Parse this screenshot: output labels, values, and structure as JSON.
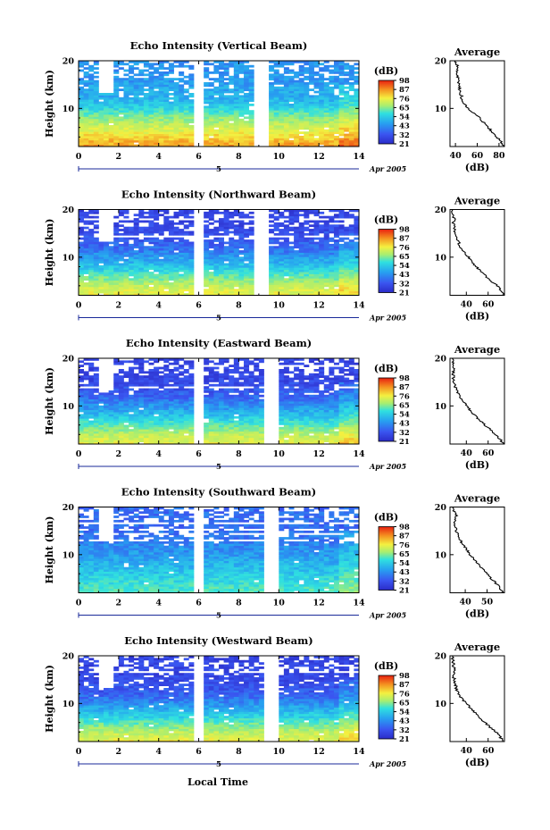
{
  "figure": {
    "xlabel": "Local Time",
    "date_label": "Apr 2005",
    "date_day": "5"
  },
  "chart_data": [
    {
      "type": "heatmap",
      "title": "Echo Intensity (Vertical Beam)",
      "ylabel": "Height (km)",
      "xlim": [
        0,
        14
      ],
      "xticks": [
        0,
        2,
        4,
        6,
        8,
        10,
        12,
        14
      ],
      "ylim": [
        2,
        20
      ],
      "yticks": [
        10,
        20
      ],
      "colorbar": {
        "label": "(dB)",
        "ticks": [
          21,
          32,
          43,
          54,
          65,
          76,
          87,
          98
        ]
      },
      "data_gaps_hours": [
        [
          5.8,
          6.1
        ],
        [
          8.9,
          9.4
        ]
      ],
      "average": {
        "title": "Average",
        "xlabel": "(dB)",
        "xticks": [
          40,
          60,
          80
        ],
        "xlim": [
          35,
          85
        ],
        "ylim": [
          2,
          20
        ],
        "yticks": [
          10,
          20
        ],
        "profile": [
          [
            85,
            2
          ],
          [
            82,
            3
          ],
          [
            78,
            4
          ],
          [
            74,
            5
          ],
          [
            70,
            6
          ],
          [
            66,
            7
          ],
          [
            62,
            8
          ],
          [
            57,
            9
          ],
          [
            52,
            10
          ],
          [
            48,
            11
          ],
          [
            46,
            12
          ],
          [
            45,
            13
          ],
          [
            44,
            14
          ],
          [
            43,
            15
          ],
          [
            42,
            16
          ],
          [
            42,
            17
          ],
          [
            41,
            18
          ],
          [
            42,
            19
          ],
          [
            40,
            20
          ]
        ]
      }
    },
    {
      "type": "heatmap",
      "title": "Echo Intensity (Northward Beam)",
      "ylabel": "Height (km)",
      "xlim": [
        0,
        14
      ],
      "xticks": [
        0,
        2,
        4,
        6,
        8,
        10,
        12,
        14
      ],
      "ylim": [
        2,
        20
      ],
      "yticks": [
        10,
        20
      ],
      "colorbar": {
        "label": "(dB)",
        "ticks": [
          21,
          32,
          43,
          54,
          65,
          76,
          87,
          98
        ]
      },
      "data_gaps_hours": [
        [
          5.8,
          6.1
        ],
        [
          8.9,
          9.4
        ]
      ],
      "average": {
        "title": "Average",
        "xlabel": "(dB)",
        "xticks": [
          40,
          60
        ],
        "xlim": [
          25,
          75
        ],
        "ylim": [
          2,
          20
        ],
        "yticks": [
          10,
          20
        ],
        "profile": [
          [
            74,
            2
          ],
          [
            72,
            3
          ],
          [
            68,
            4
          ],
          [
            63,
            5
          ],
          [
            58,
            6
          ],
          [
            53,
            7
          ],
          [
            49,
            8
          ],
          [
            45,
            9
          ],
          [
            42,
            10
          ],
          [
            38,
            11
          ],
          [
            35,
            12
          ],
          [
            33,
            13
          ],
          [
            31,
            14
          ],
          [
            30,
            15
          ],
          [
            29,
            16
          ],
          [
            28,
            17
          ],
          [
            29,
            18
          ],
          [
            28,
            19
          ],
          [
            27,
            20
          ]
        ]
      }
    },
    {
      "type": "heatmap",
      "title": "Echo Intensity (Eastward Beam)",
      "ylabel": "Height (km)",
      "xlim": [
        0,
        14
      ],
      "xticks": [
        0,
        2,
        4,
        6,
        8,
        10,
        12,
        14
      ],
      "ylim": [
        2,
        20
      ],
      "yticks": [
        10,
        20
      ],
      "colorbar": {
        "label": "(dB)",
        "ticks": [
          21,
          32,
          43,
          54,
          65,
          76,
          87,
          98
        ]
      },
      "data_gaps_hours": [
        [
          5.8,
          6.1
        ],
        [
          9.4,
          9.8
        ]
      ],
      "average": {
        "title": "Average",
        "xlabel": "(dB)",
        "xticks": [
          40,
          60
        ],
        "xlim": [
          25,
          75
        ],
        "ylim": [
          2,
          20
        ],
        "yticks": [
          10,
          20
        ],
        "profile": [
          [
            74,
            2
          ],
          [
            71,
            3
          ],
          [
            67,
            4
          ],
          [
            62,
            5
          ],
          [
            57,
            6
          ],
          [
            52,
            7
          ],
          [
            48,
            8
          ],
          [
            44,
            9
          ],
          [
            41,
            10
          ],
          [
            37,
            11
          ],
          [
            34,
            12
          ],
          [
            32,
            13
          ],
          [
            30,
            14
          ],
          [
            29,
            15
          ],
          [
            28,
            16
          ],
          [
            28,
            17
          ],
          [
            29,
            18
          ],
          [
            28,
            19
          ],
          [
            27,
            20
          ]
        ]
      }
    },
    {
      "type": "heatmap",
      "title": "Echo Intensity (Southward Beam)",
      "ylabel": "Height (km)",
      "xlim": [
        0,
        14
      ],
      "xticks": [
        0,
        2,
        4,
        6,
        8,
        10,
        12,
        14
      ],
      "ylim": [
        2,
        20
      ],
      "yticks": [
        10,
        20
      ],
      "colorbar": {
        "label": "(dB)",
        "ticks": [
          21,
          32,
          43,
          54,
          65,
          76,
          87,
          98
        ]
      },
      "data_gaps_hours": [
        [
          5.8,
          6.1
        ],
        [
          9.4,
          9.8
        ]
      ],
      "average": {
        "title": "Average",
        "xlabel": "(dB)",
        "xticks": [
          40,
          50
        ],
        "xlim": [
          33,
          58
        ],
        "ylim": [
          2,
          20
        ],
        "yticks": [
          10,
          20
        ],
        "profile": [
          [
            57,
            2
          ],
          [
            56,
            3
          ],
          [
            54,
            4
          ],
          [
            52,
            5
          ],
          [
            50,
            6
          ],
          [
            48,
            7
          ],
          [
            46,
            8
          ],
          [
            44,
            9
          ],
          [
            42,
            10
          ],
          [
            41,
            11
          ],
          [
            39,
            12
          ],
          [
            38,
            13
          ],
          [
            37,
            14
          ],
          [
            36,
            15
          ],
          [
            35,
            16
          ],
          [
            35,
            17
          ],
          [
            36,
            18
          ],
          [
            35,
            19
          ],
          [
            34,
            20
          ]
        ]
      }
    },
    {
      "type": "heatmap",
      "title": "Echo Intensity (Westward Beam)",
      "ylabel": "Height (km)",
      "xlim": [
        0,
        14
      ],
      "xticks": [
        0,
        2,
        4,
        6,
        8,
        10,
        12,
        14
      ],
      "ylim": [
        2,
        20
      ],
      "yticks": [
        10,
        20
      ],
      "colorbar": {
        "label": "(dB)",
        "ticks": [
          21,
          32,
          43,
          54,
          65,
          76,
          87,
          98
        ]
      },
      "data_gaps_hours": [
        [
          5.8,
          6.1
        ],
        [
          9.4,
          9.8
        ]
      ],
      "average": {
        "title": "Average",
        "xlabel": "(dB)",
        "xticks": [
          40,
          60
        ],
        "xlim": [
          25,
          75
        ],
        "ylim": [
          2,
          20
        ],
        "yticks": [
          10,
          20
        ],
        "profile": [
          [
            74,
            2
          ],
          [
            71,
            3
          ],
          [
            67,
            4
          ],
          [
            62,
            5
          ],
          [
            57,
            6
          ],
          [
            52,
            7
          ],
          [
            48,
            8
          ],
          [
            44,
            9
          ],
          [
            40,
            10
          ],
          [
            36,
            11
          ],
          [
            33,
            12
          ],
          [
            31,
            13
          ],
          [
            30,
            14
          ],
          [
            29,
            15
          ],
          [
            28,
            16
          ],
          [
            29,
            17
          ],
          [
            28,
            18
          ],
          [
            28,
            19
          ],
          [
            27,
            20
          ]
        ]
      }
    }
  ]
}
